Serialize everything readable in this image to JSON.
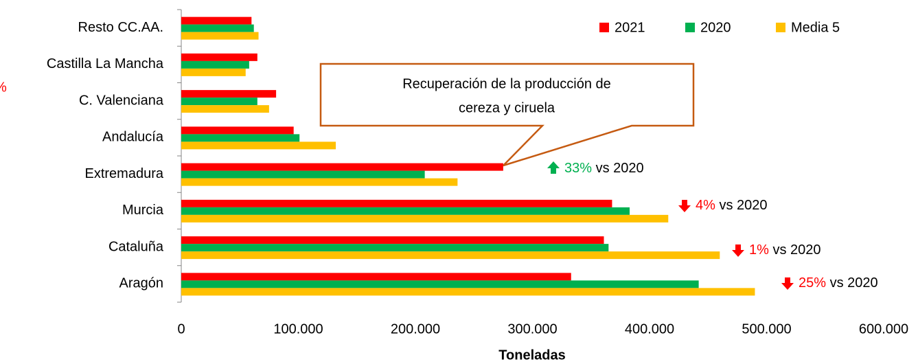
{
  "chart_data": {
    "type": "bar",
    "orientation": "horizontal",
    "categories": [
      "Resto CC.AA.",
      "Castilla La Mancha",
      "C. Valenciana",
      "Andalucía",
      "Extremadura",
      "Murcia",
      "Cataluña",
      "Aragón"
    ],
    "series": [
      {
        "name": "2021",
        "color": "#ff0000",
        "values": [
          60000,
          65000,
          81000,
          96000,
          275000,
          368000,
          361000,
          333000
        ]
      },
      {
        "name": "2020",
        "color": "#00b050",
        "values": [
          62000,
          58000,
          65000,
          101000,
          208000,
          383000,
          365000,
          442000
        ]
      },
      {
        "name": "Media 5",
        "color": "#ffc000",
        "values": [
          66000,
          55000,
          75000,
          132000,
          236000,
          416000,
          460000,
          490000
        ]
      }
    ],
    "xlim": [
      0,
      600000
    ],
    "xticks": [
      0,
      {
        "value": 100000,
        "label": "100.000"
      },
      {
        "value": 200000,
        "label": "200.000"
      },
      {
        "value": 300000,
        "label": "300.000"
      },
      {
        "value": 400000,
        "label": "400.000"
      },
      {
        "value": 500000,
        "label": "500.000"
      },
      {
        "value": 600000,
        "label": "600.000"
      }
    ],
    "xlabel": "Toneladas",
    "legend": "top-right",
    "callout": [
      "Recuperación de la producción de",
      "cereza y ciruela"
    ],
    "clipped_text": "%",
    "annotations": [
      {
        "pct": "33%",
        "text": "vs 2020",
        "direction": "up",
        "color": "#00b050"
      },
      {
        "pct": "4%",
        "text": "vs 2020",
        "direction": "down",
        "color": "#ff0000"
      },
      {
        "pct": "1%",
        "text": "vs 2020",
        "direction": "down",
        "color": "#ff0000"
      },
      {
        "pct": "25%",
        "text": "vs 2020",
        "direction": "down",
        "color": "#ff0000"
      }
    ]
  }
}
